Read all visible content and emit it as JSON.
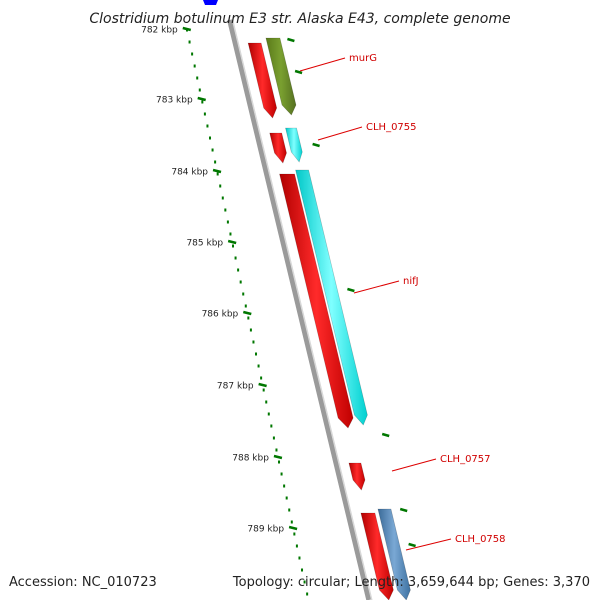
{
  "map": {
    "title": "Clostridium botulinum E3 str. Alaska E43, complete genome",
    "accession_text": "Accession: NC_010723",
    "summary_text": "Topology: circular; Length: 3,659,644 bp; Genes: 3,370"
  },
  "ticks": [
    {
      "label": "782 kbp"
    },
    {
      "label": "783 kbp"
    },
    {
      "label": "784 kbp"
    },
    {
      "label": "785 kbp"
    },
    {
      "label": "786 kbp"
    },
    {
      "label": "787 kbp"
    },
    {
      "label": "788 kbp"
    },
    {
      "label": "789 kbp"
    }
  ],
  "gene_labels": [
    "murG",
    "CLH_0755",
    "nifJ",
    "CLH_0757",
    "CLH_0758"
  ],
  "colors": {
    "cds": "#ff0000",
    "murG_gene": "#6b8e23",
    "cyan_gene": "#00ffff",
    "steel_gene": "#4682b4",
    "top_blue_feature": "#0000ff",
    "backbone": "#9a9a9a",
    "tick": "#007700",
    "label_line": "#dd0000"
  }
}
